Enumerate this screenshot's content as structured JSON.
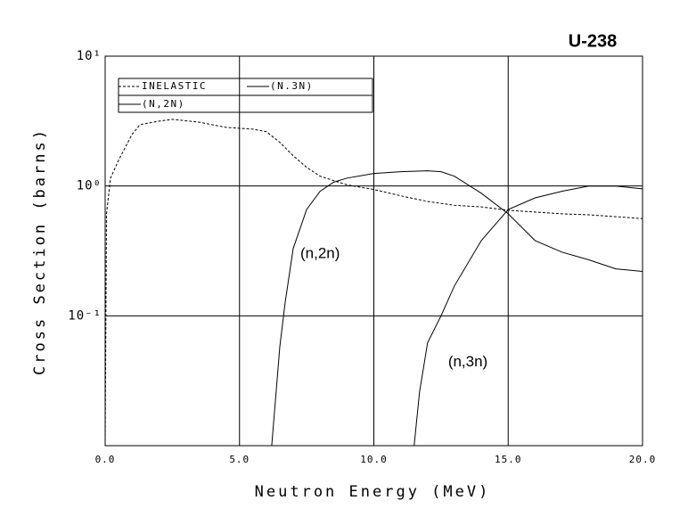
{
  "chart_data": {
    "type": "line",
    "title": "U-238",
    "xlabel": "Neutron Energy (MeV)",
    "ylabel": "Cross Section (barns)",
    "xlim": [
      0,
      20
    ],
    "ylim": [
      0.01,
      10
    ],
    "log_y": true,
    "grid": true,
    "xticks": [
      {
        "value": 0,
        "label": "0.0"
      },
      {
        "value": 5,
        "label": "5.0"
      },
      {
        "value": 10,
        "label": "10.0"
      },
      {
        "value": 15,
        "label": "15.0"
      },
      {
        "value": 20,
        "label": "20.0"
      }
    ],
    "yticks": [
      {
        "value": 0.1,
        "label": "10⁻¹"
      },
      {
        "value": 1,
        "label": "10⁰"
      },
      {
        "value": 10,
        "label": "10¹"
      }
    ],
    "annotations": [
      {
        "text": "(n,2n)",
        "x": 8,
        "y": 0.3
      },
      {
        "text": "(n,3n)",
        "x": 13.5,
        "y": 0.044
      }
    ],
    "series": [
      {
        "name": "INELASTIC",
        "color": "#000000",
        "dash": true,
        "x": [
          0,
          0.05,
          0.2,
          0.5,
          1.0,
          1.3,
          2.0,
          2.5,
          3.5,
          4.5,
          5.5,
          6.0,
          6.5,
          7.0,
          7.5,
          8.0,
          9.0,
          10,
          11,
          12,
          13,
          14,
          15,
          16,
          17,
          18,
          19,
          20
        ],
        "values": [
          0.01,
          0.61,
          1.15,
          1.58,
          2.5,
          2.97,
          3.16,
          3.26,
          3.1,
          2.83,
          2.74,
          2.62,
          2.17,
          1.71,
          1.39,
          1.19,
          1.02,
          0.94,
          0.84,
          0.76,
          0.71,
          0.69,
          0.65,
          0.63,
          0.61,
          0.6,
          0.58,
          0.56
        ]
      },
      {
        "name": "(N.3N)",
        "color": "#000000",
        "dash": false,
        "x": [
          11.5,
          11.7,
          12,
          12.5,
          13,
          14,
          15,
          16,
          17,
          18,
          19,
          20
        ],
        "values": [
          0.01,
          0.026,
          0.062,
          0.1,
          0.17,
          0.38,
          0.66,
          0.81,
          0.91,
          1.0,
          1.0,
          0.95
        ]
      },
      {
        "name": "(N,2N)",
        "color": "#000000",
        "dash": false,
        "x": [
          6.2,
          6.5,
          6.7,
          7.0,
          7.5,
          8.0,
          8.5,
          9,
          10,
          11,
          12,
          12.5,
          13,
          14,
          15,
          16,
          17,
          18,
          19,
          20
        ],
        "values": [
          0.01,
          0.058,
          0.127,
          0.33,
          0.66,
          0.91,
          1.07,
          1.15,
          1.25,
          1.29,
          1.31,
          1.29,
          1.19,
          0.88,
          0.61,
          0.38,
          0.31,
          0.27,
          0.23,
          0.22
        ]
      }
    ]
  }
}
